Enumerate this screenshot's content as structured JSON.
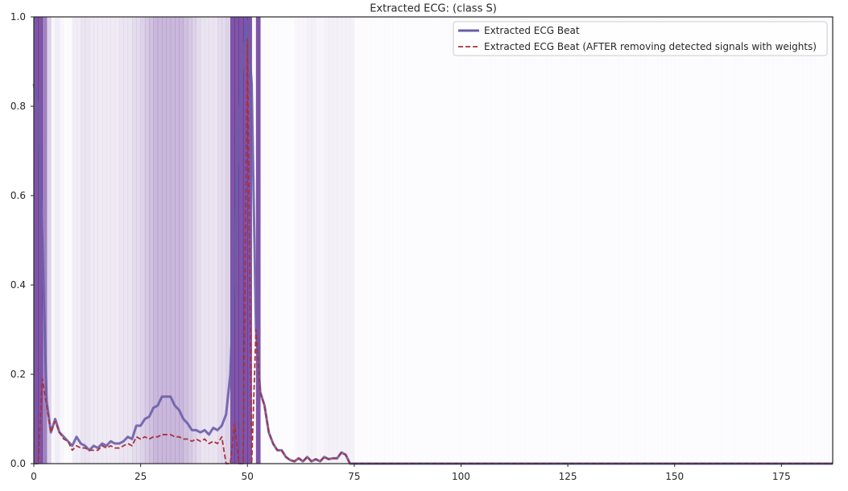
{
  "chart_data": {
    "type": "line",
    "title": "Extracted ECG: (class S)",
    "xlabel": "",
    "ylabel": "",
    "xlim": [
      0,
      187
    ],
    "ylim": [
      0,
      1
    ],
    "x_ticks": [
      0,
      25,
      50,
      75,
      100,
      125,
      150,
      175
    ],
    "y_ticks": [
      0.0,
      0.2,
      0.4,
      0.6,
      0.8,
      1.0
    ],
    "x_tick_labels": [
      "0",
      "25",
      "50",
      "75",
      "100",
      "125",
      "150",
      "175"
    ],
    "y_tick_labels": [
      "0.0",
      "0.2",
      "0.4",
      "0.6",
      "0.8",
      "1.0"
    ],
    "grid": false,
    "legend_position": "top-right",
    "background_shading": {
      "description_color": "#3f007d",
      "weights": [
        0.95,
        0.95,
        0.7,
        0.25,
        0.05,
        0.1,
        0.05,
        0.02,
        0.03,
        0.1,
        0.1,
        0.15,
        0.15,
        0.12,
        0.12,
        0.12,
        0.12,
        0.12,
        0.12,
        0.12,
        0.15,
        0.15,
        0.15,
        0.2,
        0.2,
        0.25,
        0.3,
        0.35,
        0.4,
        0.4,
        0.4,
        0.4,
        0.4,
        0.4,
        0.4,
        0.35,
        0.3,
        0.25,
        0.2,
        0.15,
        0.15,
        0.15,
        0.15,
        0.2,
        0.2,
        0.25,
        0.95,
        0.95,
        0.95,
        0.95,
        0.95,
        0.05,
        0.95,
        0.02,
        0.02,
        0.02,
        0.02,
        0.02,
        0.02,
        0.02,
        0.02,
        0.05,
        0.05,
        0.05,
        0.08,
        0.08,
        0.05,
        0.05,
        0.08,
        0.08,
        0.08,
        0.08,
        0.08,
        0.08,
        0.08,
        0.02,
        0.02
      ],
      "rest_weight": 0.02
    },
    "series": [
      {
        "name": "Extracted ECG Beat",
        "color": "#6a5ea8",
        "style": "solid",
        "x": [
          0,
          1,
          2,
          3,
          4,
          5,
          6,
          7,
          8,
          9,
          10,
          11,
          12,
          13,
          14,
          15,
          16,
          17,
          18,
          19,
          20,
          21,
          22,
          23,
          24,
          25,
          26,
          27,
          28,
          29,
          30,
          31,
          32,
          33,
          34,
          35,
          36,
          37,
          38,
          39,
          40,
          41,
          42,
          43,
          44,
          45,
          46,
          47,
          48,
          49,
          50,
          51,
          52,
          53,
          54,
          55,
          56,
          57,
          58,
          59,
          60,
          61,
          62,
          63,
          64,
          65,
          66,
          67,
          68,
          69,
          70,
          71,
          72,
          73,
          74,
          75,
          80,
          90,
          100,
          110,
          120,
          130,
          140,
          150,
          160,
          170,
          180,
          187
        ],
        "y": [
          0.85,
          0.8,
          0.5,
          0.14,
          0.07,
          0.1,
          0.07,
          0.06,
          0.05,
          0.04,
          0.06,
          0.045,
          0.04,
          0.03,
          0.04,
          0.035,
          0.045,
          0.04,
          0.05,
          0.045,
          0.045,
          0.05,
          0.06,
          0.055,
          0.085,
          0.085,
          0.1,
          0.105,
          0.125,
          0.13,
          0.15,
          0.15,
          0.15,
          0.13,
          0.12,
          0.1,
          0.09,
          0.075,
          0.075,
          0.07,
          0.075,
          0.065,
          0.08,
          0.075,
          0.085,
          0.11,
          0.2,
          0.45,
          0.75,
          0.92,
          0.99,
          0.85,
          0.3,
          0.16,
          0.13,
          0.07,
          0.045,
          0.03,
          0.03,
          0.015,
          0.008,
          0.005,
          0.012,
          0.005,
          0.015,
          0.005,
          0.01,
          0.005,
          0.015,
          0.01,
          0.012,
          0.012,
          0.025,
          0.02,
          0.0,
          0.0,
          0.0,
          0.0,
          0.0,
          0.0,
          0.0,
          0.0,
          0.0,
          0.0,
          0.0,
          0.0,
          0.0,
          0.0
        ]
      },
      {
        "name": "Extracted ECG Beat (AFTER removing detected signals with weights)",
        "color": "#a8333c",
        "style": "dashed",
        "x": [
          0,
          1,
          2,
          3,
          4,
          5,
          6,
          7,
          8,
          9,
          10,
          11,
          12,
          13,
          14,
          15,
          16,
          17,
          18,
          19,
          20,
          21,
          22,
          23,
          24,
          25,
          26,
          27,
          28,
          29,
          30,
          31,
          32,
          33,
          34,
          35,
          36,
          37,
          38,
          39,
          40,
          41,
          42,
          43,
          44,
          45,
          46,
          47,
          48,
          49,
          50,
          51,
          52,
          53,
          54,
          55,
          56,
          57,
          58,
          59,
          60,
          61,
          62,
          63,
          64,
          65,
          66,
          67,
          68,
          69,
          70,
          71,
          72,
          73,
          74,
          75,
          80,
          90,
          100,
          110,
          120,
          130,
          140,
          150,
          160,
          170,
          180,
          187
        ],
        "y": [
          0.0,
          0.0,
          0.19,
          0.13,
          0.07,
          0.095,
          0.07,
          0.055,
          0.05,
          0.03,
          0.04,
          0.035,
          0.035,
          0.03,
          0.03,
          0.03,
          0.04,
          0.035,
          0.04,
          0.035,
          0.035,
          0.04,
          0.045,
          0.04,
          0.06,
          0.055,
          0.06,
          0.055,
          0.06,
          0.06,
          0.065,
          0.065,
          0.065,
          0.06,
          0.06,
          0.055,
          0.055,
          0.05,
          0.055,
          0.05,
          0.055,
          0.045,
          0.05,
          0.045,
          0.06,
          0.0,
          0.0,
          0.09,
          0.0,
          0.0,
          0.95,
          0.0,
          0.3,
          0.16,
          0.13,
          0.07,
          0.045,
          0.03,
          0.03,
          0.015,
          0.008,
          0.005,
          0.012,
          0.005,
          0.015,
          0.005,
          0.01,
          0.005,
          0.015,
          0.01,
          0.012,
          0.012,
          0.025,
          0.02,
          0.0,
          0.0,
          0.0,
          0.0,
          0.0,
          0.0,
          0.0,
          0.0,
          0.0,
          0.0,
          0.0,
          0.0,
          0.0,
          0.0
        ]
      }
    ]
  }
}
